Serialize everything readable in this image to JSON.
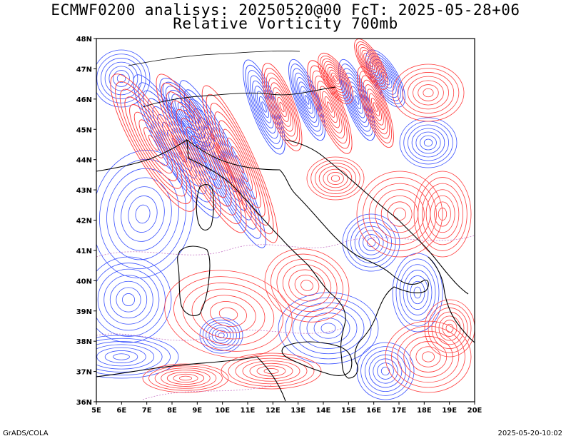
{
  "header": {
    "title_line1": "ECMWF0200 analisys: 20250520@00 FcT: 2025-05-28+06",
    "title_line2": "Relative Vorticity 700mb"
  },
  "footer": {
    "left": "GrADS/COLA",
    "right": "2025-05-20-10:02"
  },
  "map": {
    "lon_range": [
      5,
      20
    ],
    "lat_range": [
      36,
      48
    ],
    "lon_ticks": [
      "5E",
      "6E",
      "7E",
      "8E",
      "9E",
      "10E",
      "11E",
      "12E",
      "13E",
      "14E",
      "15E",
      "16E",
      "17E",
      "18E",
      "19E",
      "20E"
    ],
    "lat_ticks": [
      "36N",
      "37N",
      "38N",
      "39N",
      "40N",
      "41N",
      "42N",
      "43N",
      "44N",
      "45N",
      "46N",
      "47N",
      "48N"
    ],
    "colors": {
      "positive": "#ff3b3b",
      "negative": "#3b52ff",
      "zero": "#c87ac8",
      "coast": "#000000"
    }
  }
}
